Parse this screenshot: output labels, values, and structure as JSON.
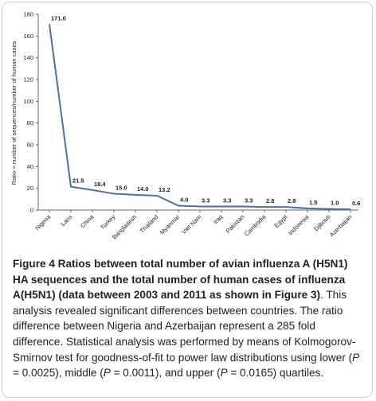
{
  "chart_data": {
    "type": "line",
    "title": "",
    "xlabel": "",
    "ylabel": "Ratio = number of sequences/number of human cases",
    "ylim": [
      0,
      180
    ],
    "yticks": [
      0,
      20,
      40,
      60,
      80,
      100,
      120,
      140,
      160,
      180
    ],
    "categories": [
      "Nigeria",
      "Laos",
      "China",
      "Turkey",
      "Bangladesh",
      "Thailand",
      "Myanmar",
      "Viet Nam",
      "Iraq",
      "Pakistan",
      "Cambodia",
      "Egypt",
      "Indonesia",
      "Djibouti",
      "Azerbaijan"
    ],
    "values": [
      171.0,
      21.5,
      18.4,
      15.0,
      14.0,
      13.2,
      4.0,
      3.3,
      3.3,
      3.3,
      2.8,
      2.8,
      1.5,
      1.0,
      0.6
    ],
    "data_labels": [
      "171.0",
      "21.5",
      "18.4",
      "15.0",
      "14.0",
      "13.2",
      "4.0",
      "3.3",
      "3.3",
      "3.3",
      "2.8",
      "2.8",
      "1.5",
      "1.0",
      "0.6"
    ],
    "line_color": "#4a6fa5",
    "grid": false
  },
  "caption": {
    "lead_bold": "Figure 4 Ratios between total number of avian influenza A (H5N1) HA sequences and the total number of human cases of influenza A(H5N1) (data between 2003 and 2011 as shown in Figure 3)",
    "sentence1": ". This analysis revealed significant differences between countries. The ratio difference between Nigeria and Azerbaijan represent a 285 fold difference. Statistical analysis was performed by means of Kolmogorov-Smirnov test for goodness-of-fit to power law distributions using lower (",
    "p_symbol": "P",
    "p1": " = 0.0025), middle (",
    "p2": " = 0.0011), and upper (",
    "p3": " = 0.0165) quartiles."
  }
}
